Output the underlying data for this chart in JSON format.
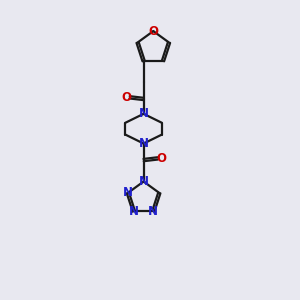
{
  "bg_color": "#e8e8f0",
  "bond_color": "#1a1a1a",
  "nitrogen_color": "#2020cc",
  "oxygen_color": "#cc0000",
  "line_width": 1.6,
  "font_size": 8.5,
  "xlim": [
    0,
    10
  ],
  "ylim": [
    0,
    18
  ]
}
